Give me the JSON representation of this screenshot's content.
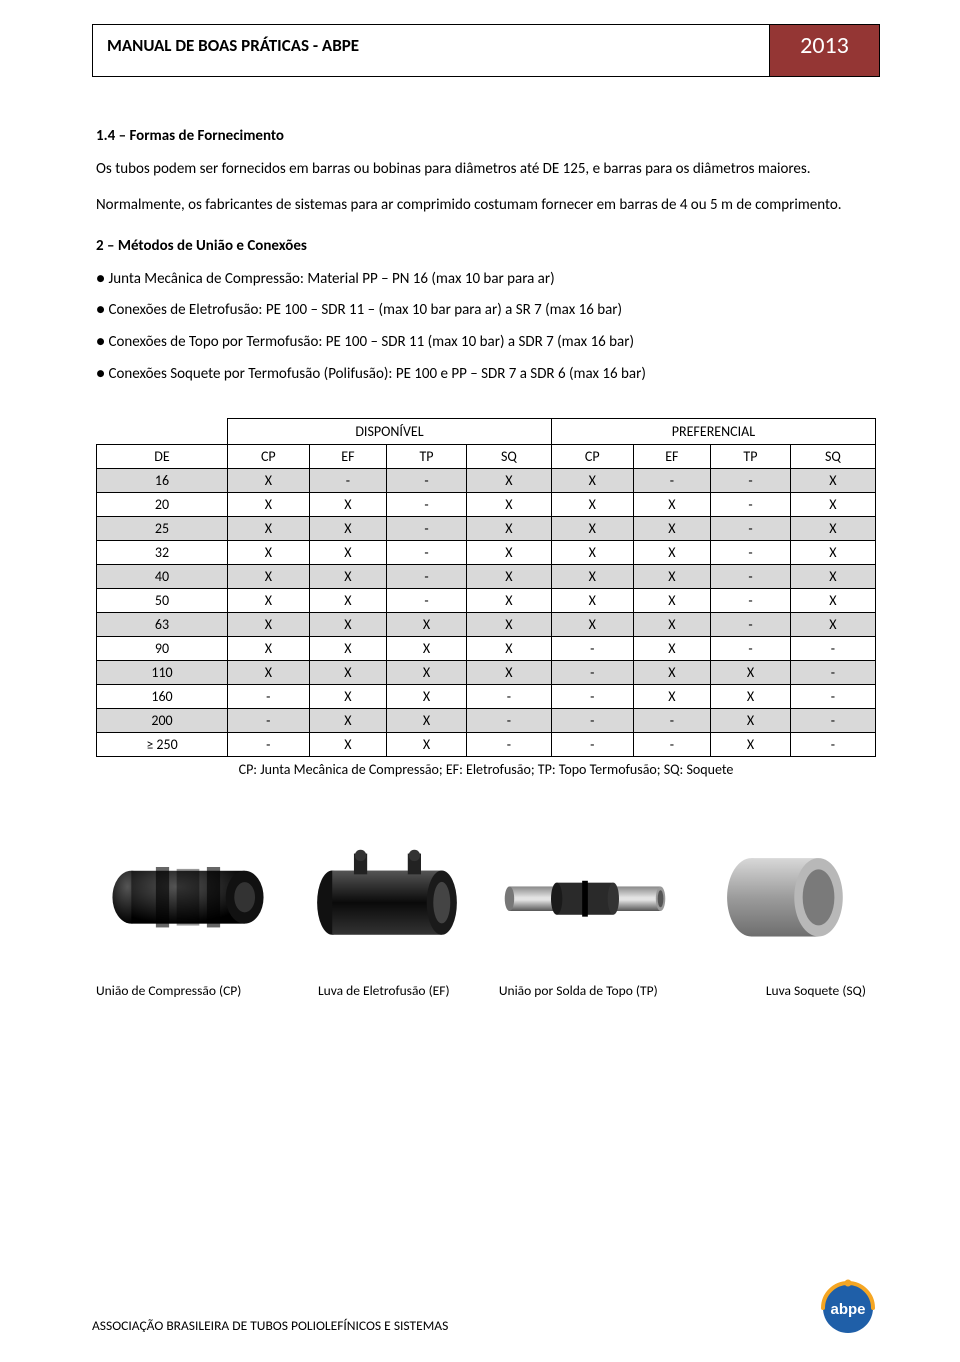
{
  "header": {
    "title": "MANUAL DE BOAS PRÁTICAS - ABPE",
    "year": "2013",
    "accent_color": "#943634"
  },
  "section14": {
    "heading": "1.4 – Formas de Fornecimento",
    "para1": "Os tubos podem ser fornecidos em barras ou bobinas para diâmetros até DE 125, e barras para os diâmetros maiores.",
    "para2": "Normalmente, os fabricantes de sistemas para ar comprimido costumam fornecer em barras de 4 ou 5 m de comprimento."
  },
  "section2": {
    "heading": "2 – Métodos de União e Conexões",
    "bullets": [
      "● Junta Mecânica de Compressão: Material PP – PN 16 (max 10 bar para ar)",
      "● Conexões de Eletrofusão: PE 100 – SDR 11 – (max 10 bar para ar) a SR 7 (max 16 bar)",
      "● Conexões de Topo por Termofusão: PE 100 – SDR 11 (max 10 bar) a SDR 7 (max 16 bar)",
      "● Conexões Soquete por Termofusão (Polifusão): PE 100 e PP – SDR 7 a SDR 6 (max 16 bar)"
    ]
  },
  "table": {
    "group_headers": [
      "DISPONÍVEL",
      "PREFERENCIAL"
    ],
    "columns": [
      "DE",
      "CP",
      "EF",
      "TP",
      "SQ",
      "CP",
      "EF",
      "TP",
      "SQ"
    ],
    "rows": [
      [
        "16",
        "X",
        "-",
        "-",
        "X",
        "X",
        "-",
        "-",
        "X"
      ],
      [
        "20",
        "X",
        "X",
        "-",
        "X",
        "X",
        "X",
        "-",
        "X"
      ],
      [
        "25",
        "X",
        "X",
        "-",
        "X",
        "X",
        "X",
        "-",
        "X"
      ],
      [
        "32",
        "X",
        "X",
        "-",
        "X",
        "X",
        "X",
        "-",
        "X"
      ],
      [
        "40",
        "X",
        "X",
        "-",
        "X",
        "X",
        "X",
        "-",
        "X"
      ],
      [
        "50",
        "X",
        "X",
        "-",
        "X",
        "X",
        "X",
        "-",
        "X"
      ],
      [
        "63",
        "X",
        "X",
        "X",
        "X",
        "X",
        "X",
        "-",
        "X"
      ],
      [
        "90",
        "X",
        "X",
        "X",
        "X",
        "-",
        "X",
        "-",
        "-"
      ],
      [
        "110",
        "X",
        "X",
        "X",
        "X",
        "-",
        "X",
        "X",
        "-"
      ],
      [
        "160",
        "-",
        "X",
        "X",
        "-",
        "-",
        "X",
        "X",
        "-"
      ],
      [
        "200",
        "-",
        "X",
        "X",
        "-",
        "-",
        "-",
        "X",
        "-"
      ],
      [
        "≥ 250",
        "-",
        "X",
        "X",
        "-",
        "-",
        "-",
        "X",
        "-"
      ]
    ],
    "row_shaded": [
      true,
      false,
      true,
      false,
      true,
      false,
      true,
      false,
      true,
      false,
      true,
      false
    ],
    "legend": "CP: Junta Mecânica de Compressão;  EF: Eletrofusão; TP: Topo Termofusão; SQ: Soquete"
  },
  "figures": {
    "captions": [
      "União de Compressão (CP)",
      "Luva de Eletrofusão (EF)",
      "União por Solda de Topo (TP)",
      "Luva Soquete (SQ)"
    ]
  },
  "footer": {
    "text": "ASSOCIAÇÃO BRASILEIRA DE TUBOS POLIOLEFÍNICOS E SISTEMAS",
    "logo_text": "abpe",
    "logo_bg": "#1f5fa8",
    "logo_accent": "#f5a623"
  }
}
